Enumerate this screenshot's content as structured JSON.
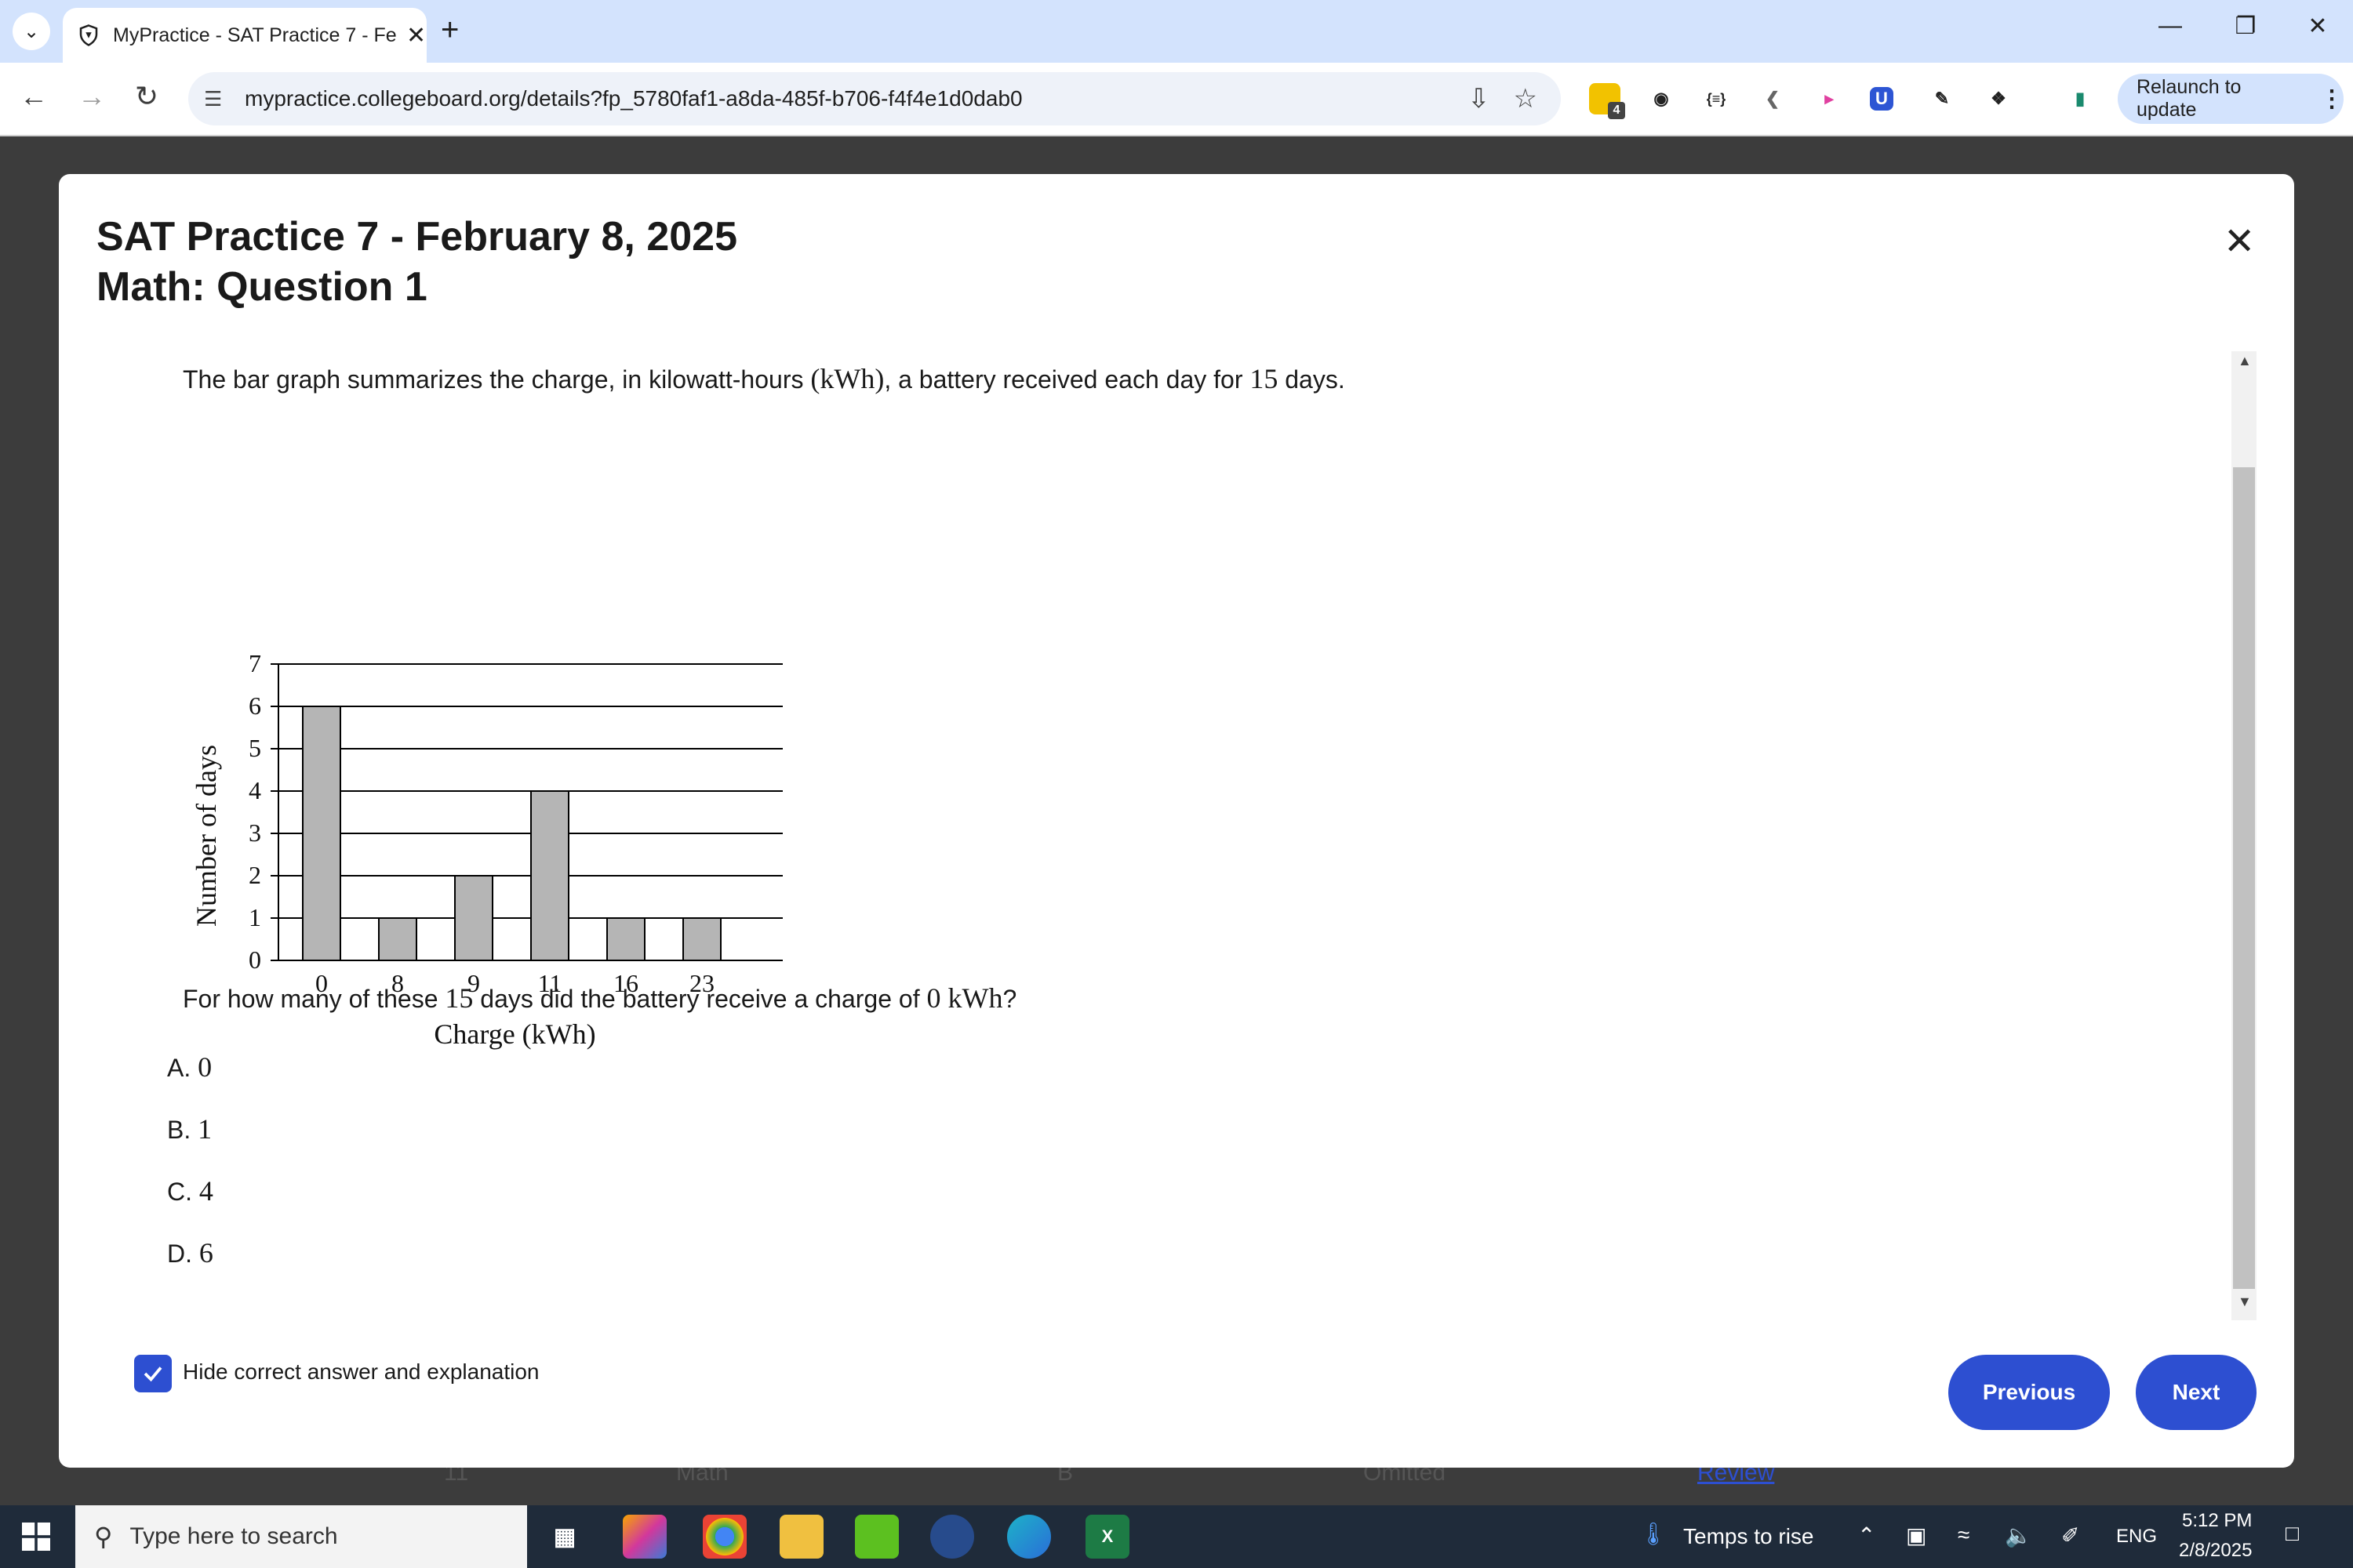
{
  "browser": {
    "tab_title": "MyPractice - SAT Practice 7 - Fe",
    "url": "mypractice.collegeboard.org/details?fp_5780faf1-a8da-485f-b706-f4f4e1d0dab0",
    "extension_badge": "4",
    "ext_json_label": "{≡}",
    "ext_u_label": "U",
    "relaunch_label": "Relaunch to update"
  },
  "background_row": {
    "number": "11",
    "section": "Math",
    "answer": "B",
    "status": "Omitted",
    "link": "Review"
  },
  "modal": {
    "title_line1": "SAT Practice 7 - February 8, 2025",
    "title_line2": "Math: Question 1",
    "stem_before": "The bar graph summarizes the charge, in kilowatt-hours ",
    "stem_unit": "(kWh)",
    "stem_mid": ", a battery received each day for ",
    "stem_days": "15",
    "stem_after": " days.",
    "question_before": "For how many of these ",
    "question_days": "15",
    "question_mid": " days did the battery receive a charge of ",
    "question_value": "0 kWh",
    "question_after": "?",
    "choices": [
      {
        "letter": "A.",
        "value": "0"
      },
      {
        "letter": "B.",
        "value": "1"
      },
      {
        "letter": "C.",
        "value": "4"
      },
      {
        "letter": "D.",
        "value": "6"
      }
    ],
    "hide_label": "Hide correct answer and explanation",
    "previous_label": "Previous",
    "next_label": "Next"
  },
  "chart_data": {
    "type": "bar",
    "categories": [
      "0",
      "8",
      "9",
      "11",
      "16",
      "23"
    ],
    "values": [
      6,
      1,
      2,
      4,
      1,
      1
    ],
    "xlabel": "Charge (kWh)",
    "ylabel": "Number of days",
    "ylim": [
      0,
      7
    ],
    "yticks": [
      "0",
      "1",
      "2",
      "3",
      "4",
      "5",
      "6",
      "7"
    ],
    "grid": true,
    "bar_color": "#b5b5b5"
  },
  "taskbar": {
    "search_placeholder": "Type here to search",
    "weather": "Temps to rise",
    "language": "ENG",
    "time": "5:12 PM",
    "date": "2/8/2025",
    "excel_label": "X"
  }
}
